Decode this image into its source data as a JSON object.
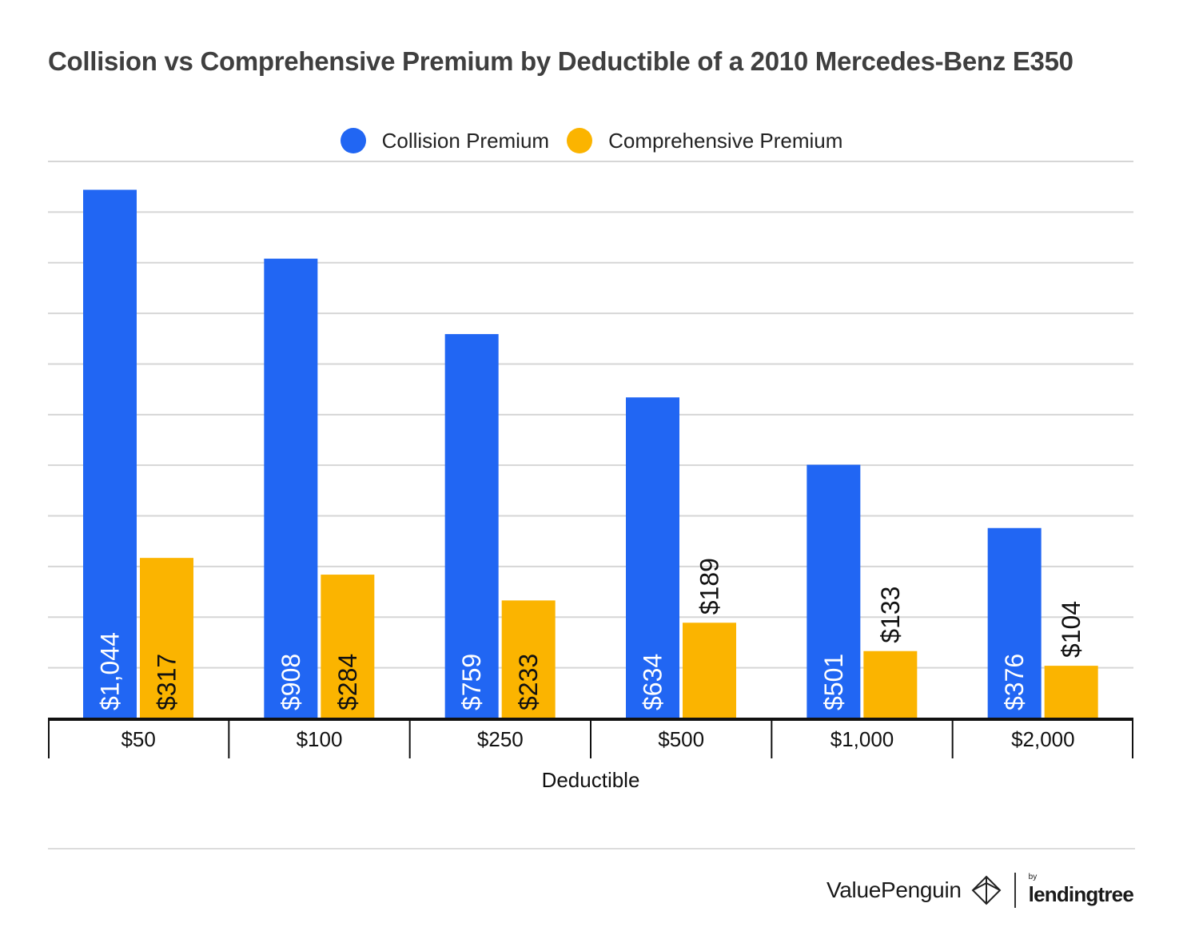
{
  "chart_data": {
    "type": "bar",
    "title": "Collision vs Comprehensive Premium by Deductible of a 2010 Mercedes-Benz E350",
    "xlabel": "Deductible",
    "ylabel": "",
    "categories": [
      "$50",
      "$100",
      "$250",
      "$500",
      "$1,000",
      "$2,000"
    ],
    "series": [
      {
        "name": "Collision Premium",
        "color": "#2166f3",
        "values": [
          1044,
          908,
          759,
          634,
          501,
          376
        ],
        "labels": [
          "$1,044",
          "$908",
          "$759",
          "$634",
          "$501",
          "$376"
        ]
      },
      {
        "name": "Comprehensive Premium",
        "color": "#fbb400",
        "values": [
          317,
          284,
          233,
          189,
          133,
          104
        ],
        "labels": [
          "$317",
          "$284",
          "$233",
          "$189",
          "$133",
          "$104"
        ]
      }
    ],
    "ylim": [
      0,
      1100
    ],
    "grid": true,
    "legend": "top-center"
  },
  "brand": {
    "valuepenguin": "ValuePenguin",
    "by": "by",
    "lendingtree": "lendingtree"
  }
}
